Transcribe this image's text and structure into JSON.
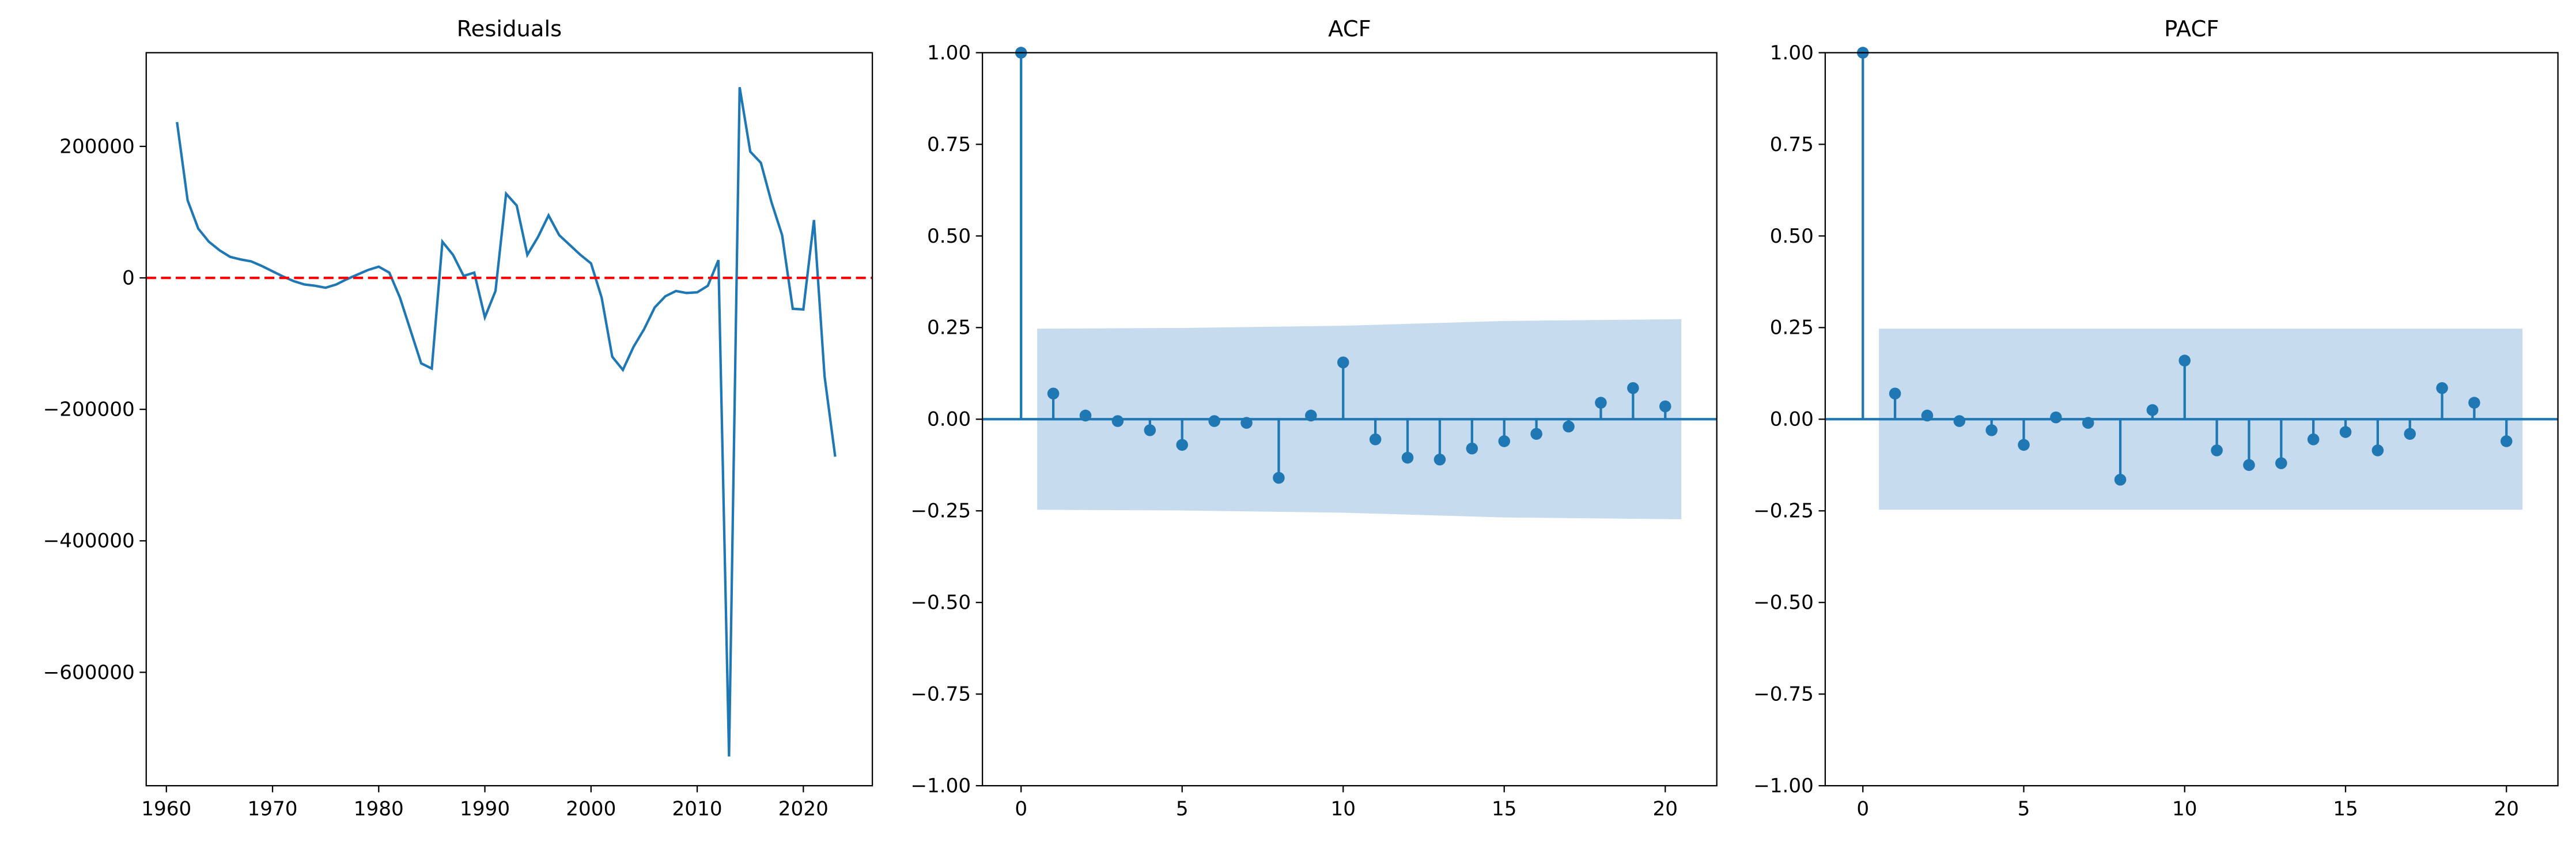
{
  "chart_data": [
    {
      "type": "line",
      "title": "Residuals",
      "x": [
        1961,
        1962,
        1963,
        1964,
        1965,
        1966,
        1967,
        1968,
        1969,
        1970,
        1971,
        1972,
        1973,
        1974,
        1975,
        1976,
        1977,
        1978,
        1979,
        1980,
        1981,
        1982,
        1983,
        1984,
        1985,
        1986,
        1987,
        1988,
        1989,
        1990,
        1991,
        1992,
        1993,
        1994,
        1995,
        1996,
        1997,
        1998,
        1999,
        2000,
        2001,
        2002,
        2003,
        2004,
        2005,
        2006,
        2007,
        2008,
        2009,
        2010,
        2011,
        2012,
        2013,
        2014,
        2015,
        2016,
        2017,
        2018,
        2019,
        2020,
        2021,
        2022,
        2023
      ],
      "series": [
        {
          "color": "#1f77b4",
          "values": [
            237000,
            118000,
            75000,
            55000,
            42000,
            32000,
            28000,
            25000,
            18000,
            10000,
            2000,
            -5000,
            -10000,
            -12000,
            -15000,
            -10000,
            -2000,
            5000,
            12000,
            17000,
            8000,
            -30000,
            -80000,
            -130000,
            -138000,
            55000,
            35000,
            3000,
            8000,
            -60000,
            -20000,
            128000,
            110000,
            35000,
            62000,
            95000,
            65000,
            50000,
            35000,
            22000,
            -30000,
            -120000,
            -140000,
            -105000,
            -78000,
            -45000,
            -28000,
            -20000,
            -23000,
            -22000,
            -12000,
            27000,
            -728000,
            290000,
            192000,
            175000,
            115000,
            65000,
            -47000,
            -48000,
            88000,
            -150000,
            -272000
          ]
        }
      ],
      "reference_line": {
        "value": 0,
        "color": "#ff0000",
        "style": "dashed"
      },
      "xlim": [
        1958.1,
        2026.5
      ],
      "xticks": [
        1960,
        1970,
        1980,
        1990,
        2000,
        2010,
        2020
      ],
      "ylim": [
        -772500,
        342500
      ],
      "yticks": [
        {
          "value": -600000,
          "label": "−600000"
        },
        {
          "value": -400000,
          "label": "−400000"
        },
        {
          "value": -200000,
          "label": "−200000"
        },
        0,
        200000
      ]
    },
    {
      "type": "stem",
      "title": "ACF",
      "color": "#1f77b4",
      "x": [
        0,
        1,
        2,
        3,
        4,
        5,
        6,
        7,
        8,
        9,
        10,
        11,
        12,
        13,
        14,
        15,
        16,
        17,
        18,
        19,
        20
      ],
      "values": [
        1,
        0.07,
        0.01,
        -0.005,
        -0.03,
        -0.07,
        -0.005,
        -0.01,
        -0.16,
        0.01,
        0.155,
        -0.055,
        -0.105,
        -0.11,
        -0.08,
        -0.06,
        -0.04,
        -0.02,
        0.045,
        0.085,
        0.035
      ],
      "confidence_band": {
        "color": "#c6dbed",
        "x": [
          0.5,
          5,
          10,
          15,
          20.5
        ],
        "upper": [
          0.247,
          0.249,
          0.255,
          0.268,
          0.273
        ],
        "lower": [
          -0.247,
          -0.249,
          -0.255,
          -0.268,
          -0.273
        ]
      },
      "xlim": [
        -1.2,
        21.6
      ],
      "xticks": [
        0,
        5,
        10,
        15,
        20
      ],
      "ylim": [
        -1,
        1
      ],
      "yticks": [
        {
          "value": -1,
          "label": "−1.00"
        },
        {
          "value": -0.75,
          "label": "−0.75"
        },
        {
          "value": -0.5,
          "label": "−0.50"
        },
        {
          "value": -0.25,
          "label": "−0.25"
        },
        {
          "value": 0,
          "label": "0.00"
        },
        0.25,
        {
          "value": 0.5,
          "label": "0.50"
        },
        0.75,
        {
          "value": 1,
          "label": "1.00"
        }
      ]
    },
    {
      "type": "stem",
      "title": "PACF",
      "color": "#1f77b4",
      "x": [
        0,
        1,
        2,
        3,
        4,
        5,
        6,
        7,
        8,
        9,
        10,
        11,
        12,
        13,
        14,
        15,
        16,
        17,
        18,
        19,
        20
      ],
      "values": [
        1,
        0.07,
        0.01,
        -0.005,
        -0.03,
        -0.07,
        0.005,
        -0.01,
        -0.165,
        0.025,
        0.16,
        -0.085,
        -0.125,
        -0.12,
        -0.055,
        -0.035,
        -0.085,
        -0.04,
        0.085,
        0.045,
        -0.06
      ],
      "confidence_band": {
        "color": "#c6dbed",
        "x": [
          0.5,
          20.5
        ],
        "upper": [
          0.247,
          0.247
        ],
        "lower": [
          -0.247,
          -0.247
        ]
      },
      "xlim": [
        -1.17,
        21.6
      ],
      "xticks": [
        0,
        5,
        10,
        15,
        20
      ],
      "ylim": [
        -1,
        1
      ],
      "yticks": [
        {
          "value": -1,
          "label": "−1.00"
        },
        {
          "value": -0.75,
          "label": "−0.75"
        },
        {
          "value": -0.5,
          "label": "−0.50"
        },
        {
          "value": -0.25,
          "label": "−0.25"
        },
        {
          "value": 0,
          "label": "0.00"
        },
        0.25,
        {
          "value": 0.5,
          "label": "0.50"
        },
        0.75,
        {
          "value": 1,
          "label": "1.00"
        }
      ]
    }
  ]
}
